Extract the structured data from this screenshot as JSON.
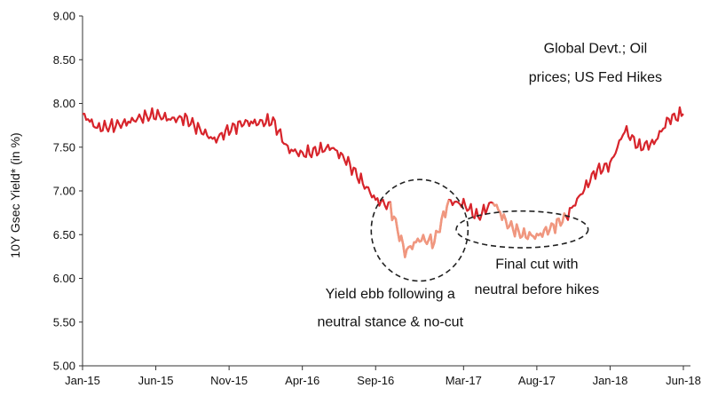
{
  "chart_data": {
    "type": "line",
    "title": "",
    "xlabel": "",
    "ylabel": "10Y Gsec Yield* (in %)",
    "ylim": [
      5.0,
      9.0
    ],
    "yticks": [
      "5.00",
      "5.50",
      "6.00",
      "6.50",
      "7.00",
      "7.50",
      "8.00",
      "8.50",
      "9.00"
    ],
    "xticks": [
      "Jan-15",
      "Jun-15",
      "Nov-15",
      "Apr-16",
      "Sep-16",
      "Mar-17",
      "Aug-17",
      "Jan-18",
      "Jun-18"
    ],
    "xlim": [
      "2015-01",
      "2018-06"
    ],
    "grid": false,
    "legend": "none",
    "line_color": "#d7242b",
    "highlight_color": "#f0977f",
    "series": [
      {
        "name": "",
        "points": [
          [
            "2015-01",
            7.88
          ],
          [
            "2015-02",
            7.72
          ],
          [
            "2015-03",
            7.74
          ],
          [
            "2015-04",
            7.78
          ],
          [
            "2015-05",
            7.84
          ],
          [
            "2015-06",
            7.87
          ],
          [
            "2015-07",
            7.82
          ],
          [
            "2015-08",
            7.83
          ],
          [
            "2015-09",
            7.7
          ],
          [
            "2015-10",
            7.58
          ],
          [
            "2015-11",
            7.7
          ],
          [
            "2015-12",
            7.78
          ],
          [
            "2016-01",
            7.78
          ],
          [
            "2016-02",
            7.8
          ],
          [
            "2016-03",
            7.48
          ],
          [
            "2016-04",
            7.42
          ],
          [
            "2016-05",
            7.46
          ],
          [
            "2016-06",
            7.5
          ],
          [
            "2016-07",
            7.35
          ],
          [
            "2016-08",
            7.12
          ],
          [
            "2016-09",
            6.9
          ],
          [
            "2016-10",
            6.82
          ],
          [
            "2016-11",
            6.3
          ],
          [
            "2016-12",
            6.45
          ],
          [
            "2017-01",
            6.42
          ],
          [
            "2017-02",
            6.88
          ],
          [
            "2017-03",
            6.85
          ],
          [
            "2017-04",
            6.7
          ],
          [
            "2017-05",
            6.88
          ],
          [
            "2017-06",
            6.62
          ],
          [
            "2017-07",
            6.5
          ],
          [
            "2017-08",
            6.48
          ],
          [
            "2017-09",
            6.58
          ],
          [
            "2017-10",
            6.7
          ],
          [
            "2017-11",
            6.96
          ],
          [
            "2017-12",
            7.22
          ],
          [
            "2018-01",
            7.3
          ],
          [
            "2018-02",
            7.7
          ],
          [
            "2018-03",
            7.5
          ],
          [
            "2018-04",
            7.55
          ],
          [
            "2018-05",
            7.82
          ],
          [
            "2018-06",
            7.88
          ]
        ]
      }
    ],
    "highlights": [
      {
        "from": "2016-10",
        "to": "2017-02"
      },
      {
        "from": "2017-05",
        "to": "2017-10"
      }
    ],
    "annotations": [
      {
        "label": "Global Devt.; Oil",
        "at": "2017-12",
        "y": 8.58
      },
      {
        "label": "prices; US Fed Hikes",
        "at": "2017-12",
        "y": 8.25
      },
      {
        "label": "Yield ebb following a",
        "at": "2016-10",
        "y": 5.77
      },
      {
        "label": "neutral stance & no-cut",
        "at": "2016-10",
        "y": 5.45
      },
      {
        "label": "Final cut with",
        "at": "2017-08",
        "y": 6.11
      },
      {
        "label": "neutral before hikes",
        "at": "2017-08",
        "y": 5.82
      }
    ],
    "ellipses": [
      {
        "center": [
          "2016-12",
          6.55
        ],
        "rx_months": 3.3,
        "ry_value": 0.58
      },
      {
        "center": [
          "2017-07",
          6.56
        ],
        "rx_months": 4.5,
        "ry_value": 0.21
      }
    ]
  }
}
